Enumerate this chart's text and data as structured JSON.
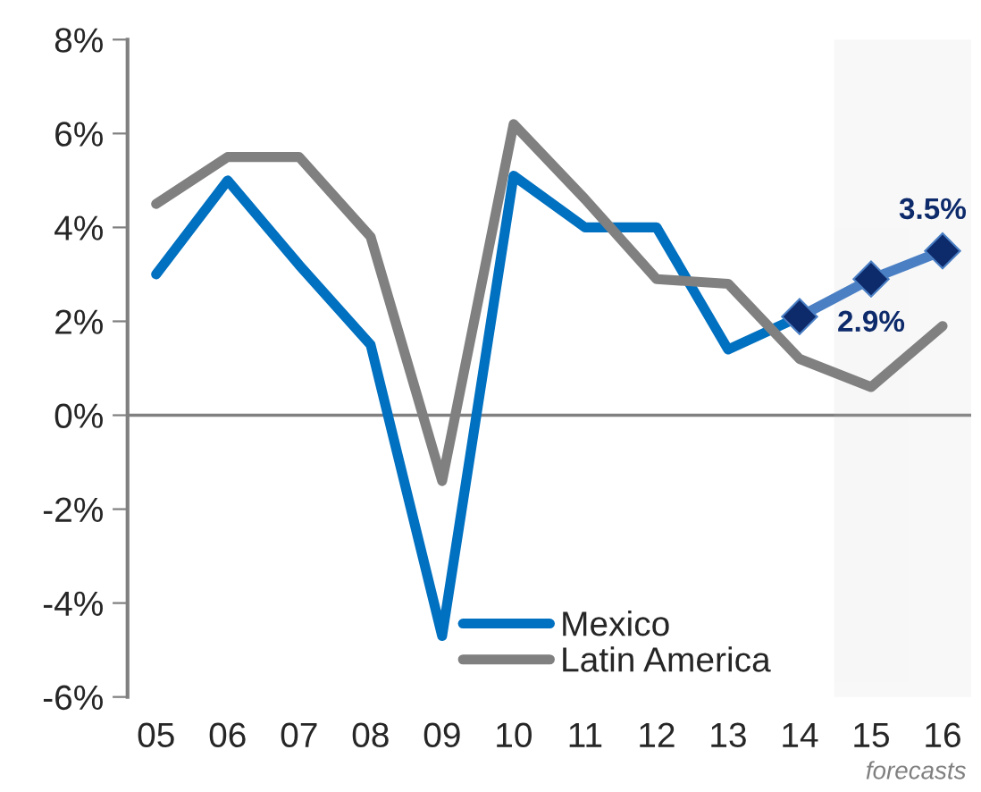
{
  "chart_data": {
    "type": "line",
    "categories": [
      "05",
      "06",
      "07",
      "08",
      "09",
      "10",
      "11",
      "12",
      "13",
      "14",
      "15",
      "16"
    ],
    "series": [
      {
        "name": "Mexico",
        "color": "#0070c0",
        "values": [
          3.0,
          5.0,
          3.2,
          1.5,
          -4.7,
          5.1,
          4.0,
          4.0,
          1.4,
          2.1,
          null,
          null
        ]
      },
      {
        "type": "line",
        "color": "#4a7fc4",
        "marker": "diamond",
        "values": [
          null,
          null,
          null,
          null,
          null,
          null,
          null,
          null,
          null,
          2.1,
          2.9,
          3.5
        ],
        "value_labels": [
          null,
          null,
          null,
          null,
          null,
          null,
          null,
          null,
          null,
          null,
          "2.9%",
          "3.5%"
        ]
      },
      {
        "name": "Latin America",
        "color": "#808080",
        "values": [
          4.5,
          5.5,
          5.5,
          3.8,
          -1.4,
          6.2,
          4.6,
          2.9,
          2.8,
          1.2,
          0.6,
          1.9
        ]
      }
    ],
    "ylim": [
      -6,
      8
    ],
    "yticks": [
      {
        "value": -6,
        "label": "-6%"
      },
      {
        "value": -4,
        "label": "-4%"
      },
      {
        "value": -2,
        "label": "-2%"
      },
      {
        "value": 0,
        "label": "0%"
      },
      {
        "value": 2,
        "label": "2%"
      },
      {
        "value": 4,
        "label": "4%"
      },
      {
        "value": 6,
        "label": "6%"
      },
      {
        "value": 8,
        "label": "8%"
      }
    ],
    "ref_lines": [
      {
        "axis": "y",
        "value": 0,
        "color": "#808080"
      }
    ],
    "bands": [
      {
        "axis": "x",
        "from": "15",
        "to": "16",
        "color": "#c0c0c0"
      }
    ],
    "annotations": [
      "forecasts"
    ],
    "grid": false,
    "legend": "bottom"
  }
}
